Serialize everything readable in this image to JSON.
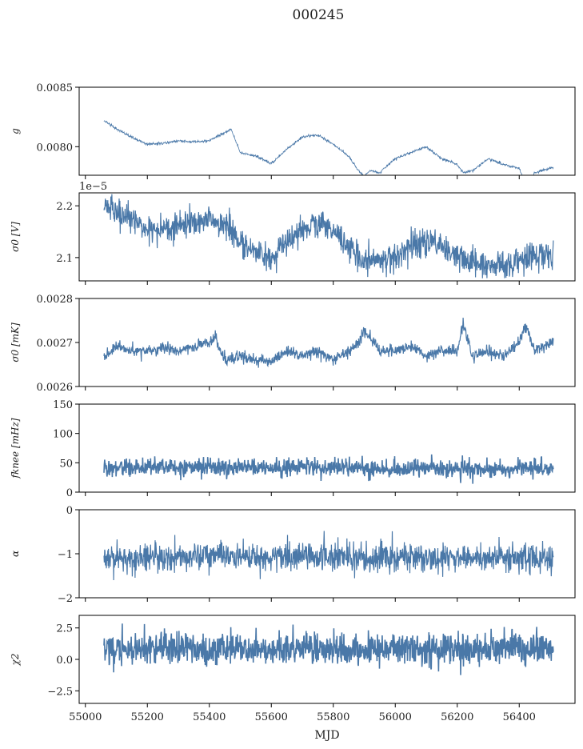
{
  "figure": {
    "title": "000245",
    "xlabel": "MJD",
    "xlim": [
      54980,
      56580
    ],
    "xticks": [
      55000,
      55200,
      55400,
      55600,
      55800,
      56000,
      56200,
      56400
    ],
    "data_xrange": [
      55060,
      56510
    ],
    "line_color": "#4a78a8"
  },
  "chart_data": [
    {
      "type": "line",
      "name": "g",
      "ylabel": "g",
      "ylim": [
        0.00776,
        0.0085
      ],
      "yticks": [
        0.008,
        0.0085
      ],
      "ytick_labels": [
        "0.0080",
        "0.0085"
      ],
      "show_x_ticklabels": false,
      "offset_text": "",
      "noise": 1e-05,
      "x": [
        55060,
        55100,
        55150,
        55200,
        55250,
        55300,
        55350,
        55400,
        55450,
        55470,
        55500,
        55550,
        55600,
        55650,
        55700,
        55750,
        55800,
        55850,
        55880,
        55900,
        55920,
        55950,
        56000,
        56050,
        56100,
        56150,
        56200,
        56220,
        56250,
        56300,
        56350,
        56400,
        56420,
        56450,
        56500
      ],
      "y": [
        0.00822,
        0.00815,
        0.00808,
        0.00802,
        0.00803,
        0.00805,
        0.00804,
        0.00805,
        0.00812,
        0.00815,
        0.00795,
        0.00792,
        0.00786,
        0.00798,
        0.00808,
        0.0081,
        0.00802,
        0.00792,
        0.0078,
        0.00775,
        0.0078,
        0.00778,
        0.0079,
        0.00795,
        0.008,
        0.0079,
        0.00785,
        0.00778,
        0.0078,
        0.0079,
        0.00785,
        0.00782,
        0.00768,
        0.00778,
        0.00782
      ]
    },
    {
      "type": "line",
      "name": "sigma0_V",
      "ylabel": "σ0 [V]",
      "ylim": [
        2.055,
        2.225
      ],
      "yticks": [
        2.1,
        2.2
      ],
      "ytick_labels": [
        "2.1",
        "2.2"
      ],
      "show_x_ticklabels": false,
      "offset_text": "1e−5",
      "noise": 0.025,
      "x": [
        55060,
        55100,
        55150,
        55200,
        55250,
        55300,
        55350,
        55400,
        55450,
        55500,
        55550,
        55600,
        55650,
        55700,
        55750,
        55800,
        55850,
        55900,
        55950,
        56000,
        56050,
        56100,
        56150,
        56200,
        56250,
        56300,
        56350,
        56400,
        56450,
        56500
      ],
      "y": [
        2.2,
        2.19,
        2.17,
        2.155,
        2.15,
        2.16,
        2.165,
        2.17,
        2.165,
        2.13,
        2.11,
        2.1,
        2.13,
        2.155,
        2.165,
        2.15,
        2.12,
        2.095,
        2.1,
        2.1,
        2.12,
        2.135,
        2.12,
        2.1,
        2.09,
        2.085,
        2.09,
        2.095,
        2.1,
        2.105
      ]
    },
    {
      "type": "line",
      "name": "sigma0_mK",
      "ylabel": "σ0 [mK]",
      "ylim": [
        0.0026,
        0.0028
      ],
      "yticks": [
        0.0026,
        0.0027,
        0.0028
      ],
      "ytick_labels": [
        "0.0026",
        "0.0027",
        "0.0028"
      ],
      "show_x_ticklabels": false,
      "offset_text": "",
      "noise": 1.2e-05,
      "x": [
        55060,
        55100,
        55150,
        55200,
        55250,
        55300,
        55350,
        55400,
        55420,
        55450,
        55500,
        55550,
        55600,
        55650,
        55700,
        55750,
        55800,
        55850,
        55880,
        55900,
        55950,
        56000,
        56050,
        56100,
        56150,
        56200,
        56220,
        56250,
        56300,
        56350,
        56400,
        56420,
        56450,
        56500
      ],
      "y": [
        0.00267,
        0.00269,
        0.00268,
        0.00268,
        0.00269,
        0.00268,
        0.00269,
        0.0027,
        0.00271,
        0.00266,
        0.00267,
        0.00266,
        0.00266,
        0.00268,
        0.00267,
        0.00268,
        0.00266,
        0.00268,
        0.0027,
        0.00273,
        0.00268,
        0.00268,
        0.00269,
        0.00267,
        0.00268,
        0.00268,
        0.00274,
        0.00267,
        0.00268,
        0.00267,
        0.0027,
        0.00274,
        0.00268,
        0.0027
      ]
    },
    {
      "type": "line",
      "name": "fknee",
      "ylabel": "fknee [mHz]",
      "ylim": [
        0,
        150
      ],
      "yticks": [
        0,
        50,
        100,
        150
      ],
      "ytick_labels": [
        "0",
        "50",
        "100",
        "150"
      ],
      "show_x_ticklabels": false,
      "offset_text": "",
      "noise": 13,
      "x": [
        55060,
        55200,
        55400,
        55600,
        55800,
        55900,
        56000,
        56100,
        56200,
        56300,
        56400,
        56500
      ],
      "y": [
        42,
        42,
        43,
        42,
        41,
        40,
        38,
        42,
        40,
        38,
        40,
        40
      ]
    },
    {
      "type": "line",
      "name": "alpha",
      "ylabel": "α",
      "ylim": [
        -2,
        0
      ],
      "yticks": [
        -2,
        -1,
        0
      ],
      "ytick_labels": [
        "−2",
        "−1",
        "0"
      ],
      "show_x_ticklabels": false,
      "offset_text": "",
      "noise": 0.3,
      "x": [
        55060,
        55200,
        55400,
        55600,
        55800,
        55900,
        56000,
        56200,
        56300,
        56400,
        56500
      ],
      "y": [
        -1.1,
        -1.1,
        -1.05,
        -1.08,
        -1.05,
        -1.1,
        -1.1,
        -1.08,
        -1.1,
        -1.1,
        -1.1
      ]
    },
    {
      "type": "line",
      "name": "chi2",
      "ylabel": "χ2",
      "ylim": [
        -3.5,
        3.5
      ],
      "yticks": [
        -2.5,
        0,
        2.5
      ],
      "ytick_labels": [
        "−2.5",
        "0.0",
        "2.5"
      ],
      "show_x_ticklabels": true,
      "offset_text": "",
      "noise": 1.15,
      "x": [
        55060,
        55200,
        55400,
        55600,
        55800,
        56000,
        56200,
        56400,
        56500
      ],
      "y": [
        0.8,
        0.9,
        0.9,
        0.7,
        0.9,
        0.9,
        0.8,
        0.9,
        0.9
      ]
    }
  ]
}
